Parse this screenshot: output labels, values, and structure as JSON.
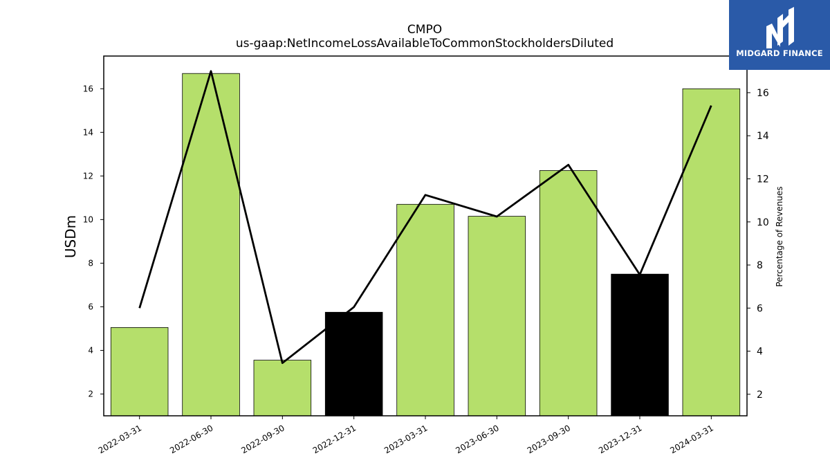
{
  "chart_data": {
    "type": "bar",
    "title": "CMPO",
    "subtitle": "us-gaap:NetIncomeLossAvailableToCommonStockholdersDiluted",
    "ylabel": "USDm",
    "ylabel_right": "Percentage of Revenues",
    "categories": [
      "2022-03-31",
      "2022-06-30",
      "2022-09-30",
      "2022-12-31",
      "2023-03-31",
      "2023-06-30",
      "2023-09-30",
      "2023-12-31",
      "2024-03-31"
    ],
    "series": [
      {
        "type": "bar",
        "axis": "left",
        "values": [
          5.05,
          16.7,
          3.55,
          5.75,
          10.7,
          10.15,
          12.25,
          7.5,
          16.0
        ],
        "colors": [
          "#b5df6b",
          "#b5df6b",
          "#b5df6b",
          "#000000",
          "#b5df6b",
          "#b5df6b",
          "#b5df6b",
          "#000000",
          "#b5df6b"
        ]
      },
      {
        "type": "line",
        "axis": "right",
        "color": "#000000",
        "values": [
          6.0,
          17.0,
          3.45,
          6.05,
          11.25,
          10.25,
          12.65,
          7.55,
          15.4
        ]
      }
    ],
    "ylim": [
      1.0,
      17.5
    ],
    "yticks": [
      2,
      4,
      6,
      8,
      10,
      12,
      14,
      16
    ],
    "ylim_right": [
      1.0,
      17.7
    ],
    "yticks_right": [
      2,
      4,
      6,
      8,
      10,
      12,
      14,
      16
    ],
    "grid": false
  },
  "logo": {
    "text": "MIDGARD FINANCE",
    "color": "#2a5aa8"
  }
}
